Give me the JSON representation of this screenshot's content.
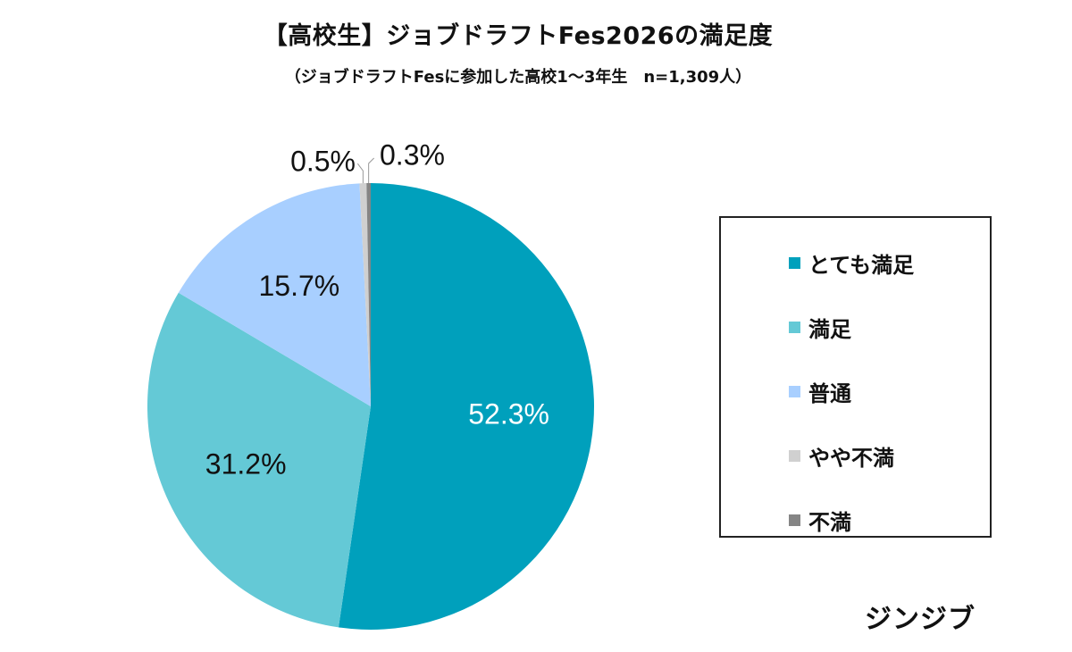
{
  "chart_data": {
    "type": "pie",
    "title": "【高校生】ジョブドラフトFes2026の満足度",
    "subtitle": "（ジョブドラフトFesに参加した高校1〜3年生　n=1,309人）",
    "categories": [
      "とても満足",
      "満足",
      "普通",
      "やや不満",
      "不満"
    ],
    "values": [
      52.3,
      31.2,
      15.7,
      0.5,
      0.3
    ],
    "data_labels": [
      "52.3%",
      "31.2%",
      "15.7%",
      "0.5%",
      "0.3%"
    ],
    "colors": [
      "#00a0bc",
      "#64c9d6",
      "#a8cfff",
      "#d0d0d0",
      "#858585"
    ],
    "start": "top",
    "direction": "clockwise",
    "legend_position": "right"
  },
  "brand": "ジンジブ"
}
